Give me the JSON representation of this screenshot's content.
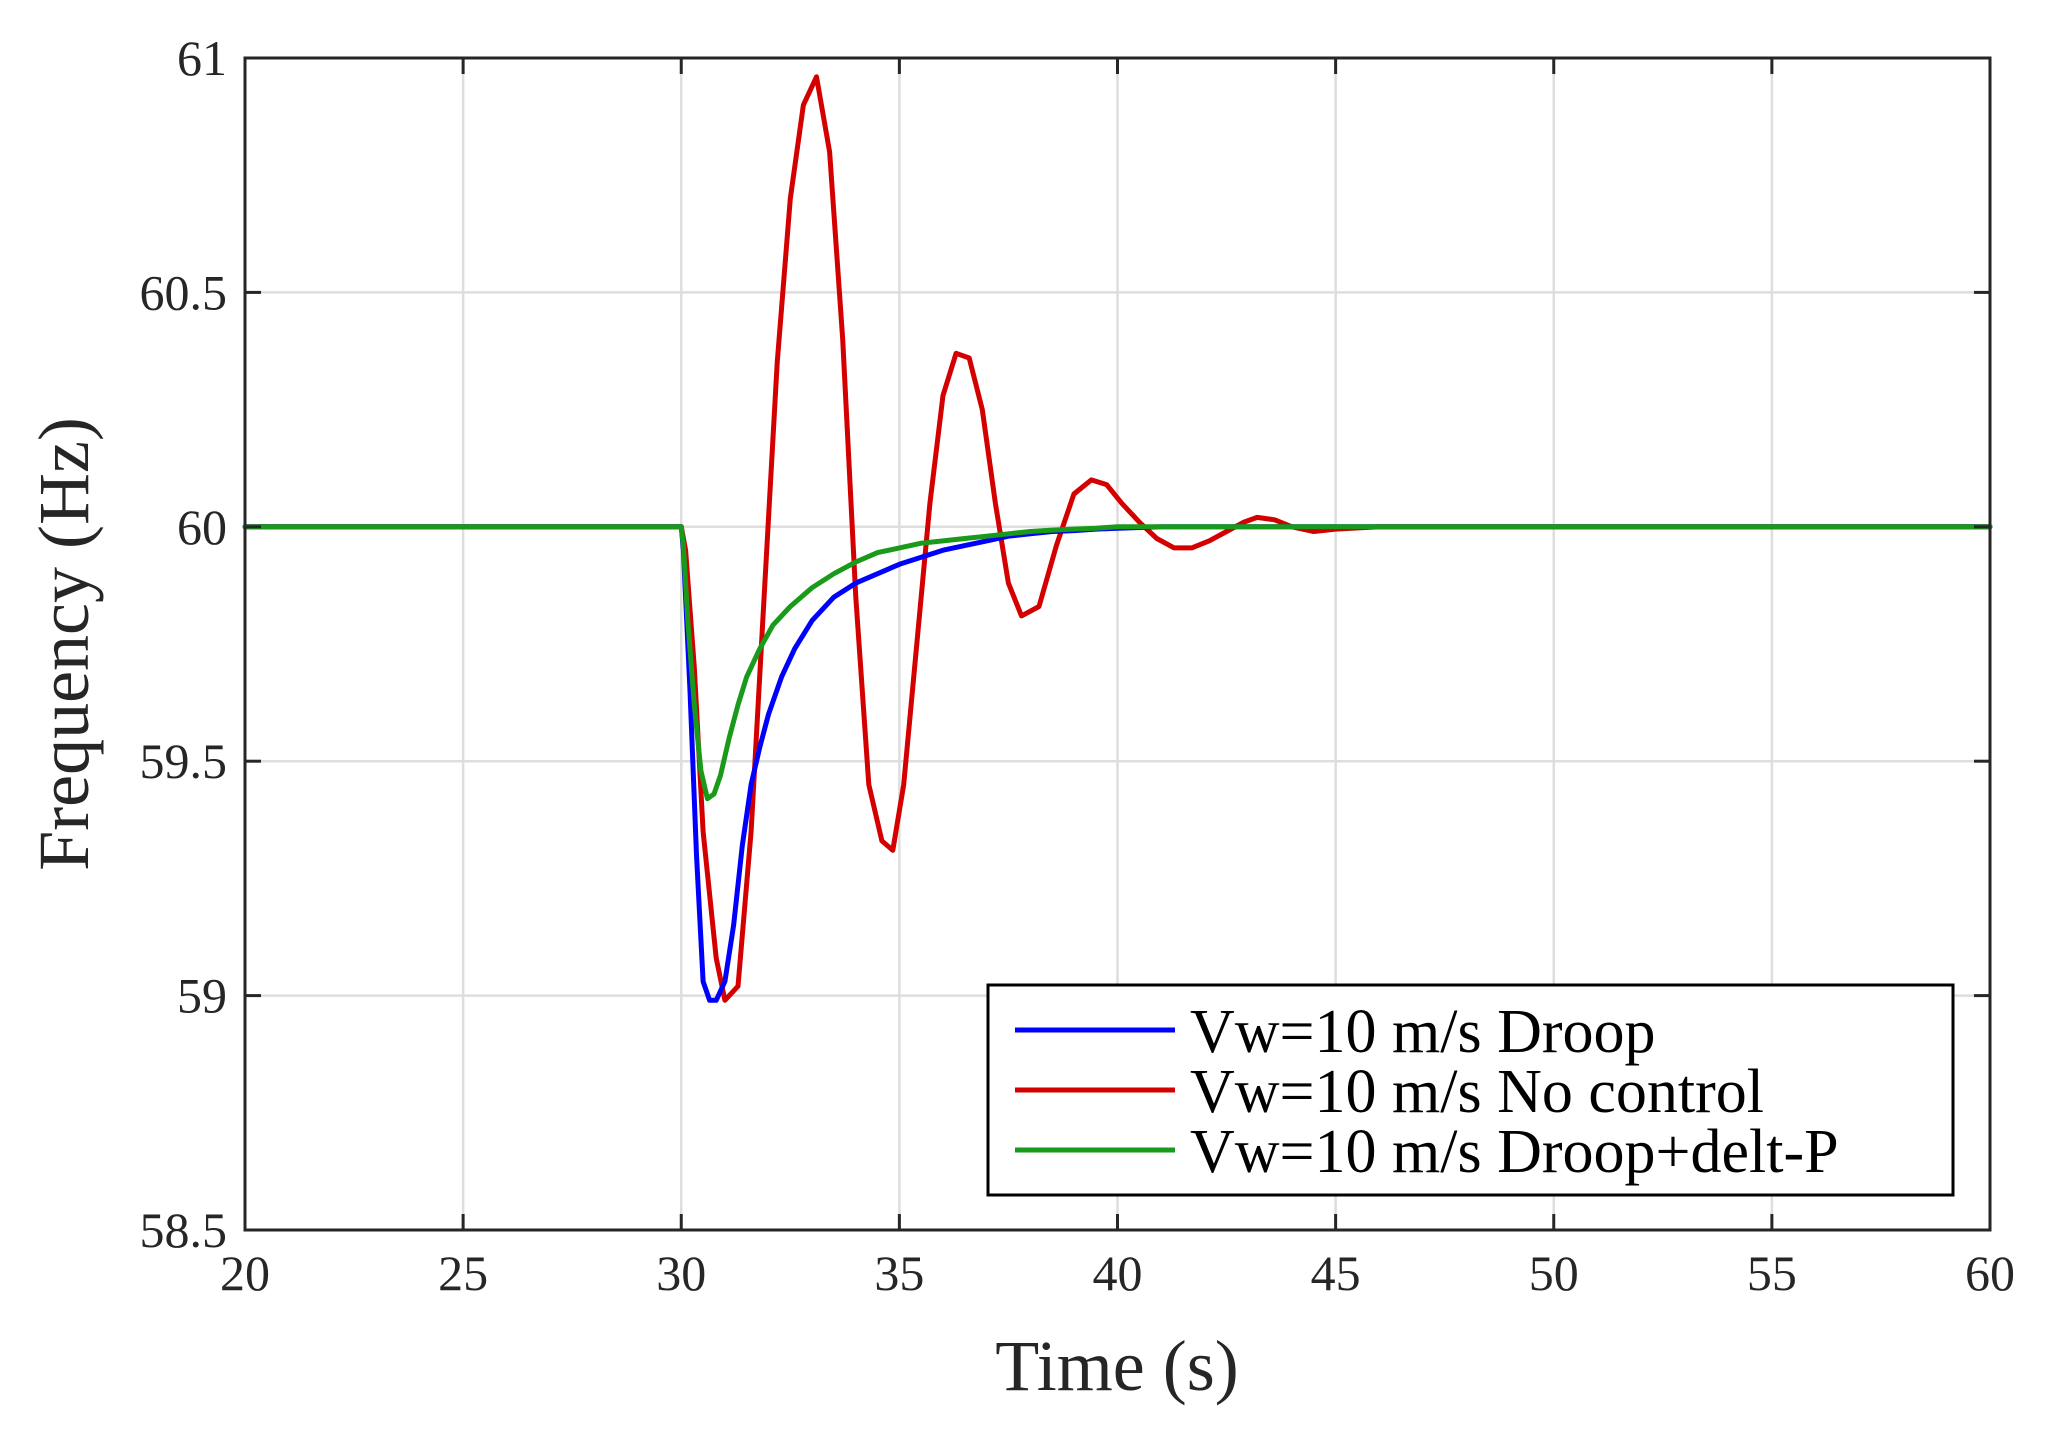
{
  "chart_data": {
    "type": "line",
    "xlabel": "Time (s)",
    "ylabel": "Frequency (Hz)",
    "xlim": [
      20,
      60
    ],
    "ylim": [
      58.5,
      61
    ],
    "xticks": [
      "20",
      "25",
      "30",
      "35",
      "40",
      "45",
      "50",
      "55",
      "60"
    ],
    "yticks": [
      "58.5",
      "59",
      "59.5",
      "60",
      "60.5",
      "61"
    ],
    "grid": true,
    "legend_position": "bottom-right",
    "series": [
      {
        "name": "Vw=10 m/s Droop",
        "color": "#0000ff",
        "x": [
          20,
          30,
          30.05,
          30.2,
          30.35,
          30.5,
          30.65,
          30.8,
          31.0,
          31.2,
          31.4,
          31.6,
          31.8,
          32.0,
          32.3,
          32.6,
          33.0,
          33.5,
          34.0,
          34.5,
          35.0,
          35.5,
          36.0,
          36.5,
          37.0,
          37.5,
          38.0,
          38.5,
          39.0,
          39.5,
          40.0,
          41.0,
          42.0,
          43.0,
          44.0,
          45.0,
          47.0,
          50.0,
          53.0,
          56.0,
          60.0
        ],
        "values": [
          60,
          60,
          59.95,
          59.65,
          59.3,
          59.03,
          58.99,
          58.99,
          59.03,
          59.15,
          59.32,
          59.45,
          59.53,
          59.6,
          59.68,
          59.74,
          59.8,
          59.85,
          59.88,
          59.9,
          59.92,
          59.935,
          59.95,
          59.96,
          59.97,
          59.98,
          59.985,
          59.99,
          59.992,
          59.995,
          59.997,
          60.0,
          60.0,
          60.0,
          60.0,
          60.0,
          60.0,
          60.0,
          60.0,
          60.0,
          60.0
        ]
      },
      {
        "name": "Vw=10 m/s No control",
        "color": "#d40000",
        "x": [
          20,
          30,
          30.1,
          30.3,
          30.5,
          30.8,
          31.0,
          31.3,
          31.6,
          31.9,
          32.2,
          32.5,
          32.8,
          33.1,
          33.4,
          33.7,
          34.0,
          34.3,
          34.6,
          34.85,
          35.1,
          35.4,
          35.7,
          36.0,
          36.3,
          36.6,
          36.9,
          37.2,
          37.5,
          37.8,
          38.2,
          38.6,
          39.0,
          39.4,
          39.75,
          40.1,
          40.5,
          40.9,
          41.3,
          41.7,
          42.1,
          42.5,
          42.9,
          43.2,
          43.6,
          44.0,
          44.5,
          45.0,
          46.0,
          48.0,
          60.0
        ],
        "values": [
          60,
          60,
          59.95,
          59.7,
          59.35,
          59.08,
          58.99,
          59.02,
          59.35,
          59.85,
          60.35,
          60.7,
          60.9,
          60.96,
          60.8,
          60.4,
          59.85,
          59.45,
          59.33,
          59.31,
          59.45,
          59.75,
          60.05,
          60.28,
          60.37,
          60.36,
          60.25,
          60.05,
          59.88,
          59.81,
          59.83,
          59.96,
          60.07,
          60.1,
          60.09,
          60.05,
          60.01,
          59.975,
          59.955,
          59.955,
          59.97,
          59.99,
          60.01,
          60.02,
          60.015,
          60.0,
          59.99,
          59.995,
          60.0,
          60.0,
          60.0
        ]
      },
      {
        "name": "Vw=10 m/s Droop+delt-P",
        "color": "#1a9a1a",
        "x": [
          20,
          30,
          30.05,
          30.15,
          30.3,
          30.45,
          30.6,
          30.75,
          30.9,
          31.1,
          31.3,
          31.5,
          31.8,
          32.1,
          32.5,
          33.0,
          33.5,
          34.0,
          34.5,
          35.0,
          35.5,
          36.0,
          36.5,
          37.0,
          37.5,
          38.0,
          38.5,
          39.0,
          39.5,
          40.0,
          41.0,
          42.0,
          43.0,
          45.0,
          50.0,
          55.0,
          60.0
        ],
        "values": [
          60,
          60,
          59.96,
          59.8,
          59.62,
          59.48,
          59.42,
          59.43,
          59.47,
          59.55,
          59.62,
          59.68,
          59.74,
          59.79,
          59.83,
          59.87,
          59.9,
          59.925,
          59.945,
          59.955,
          59.965,
          59.97,
          59.975,
          59.98,
          59.985,
          59.99,
          59.993,
          59.995,
          59.997,
          60.0,
          60.0,
          60.0,
          60.0,
          60.0,
          60.0,
          60.0,
          60.0
        ]
      }
    ]
  }
}
